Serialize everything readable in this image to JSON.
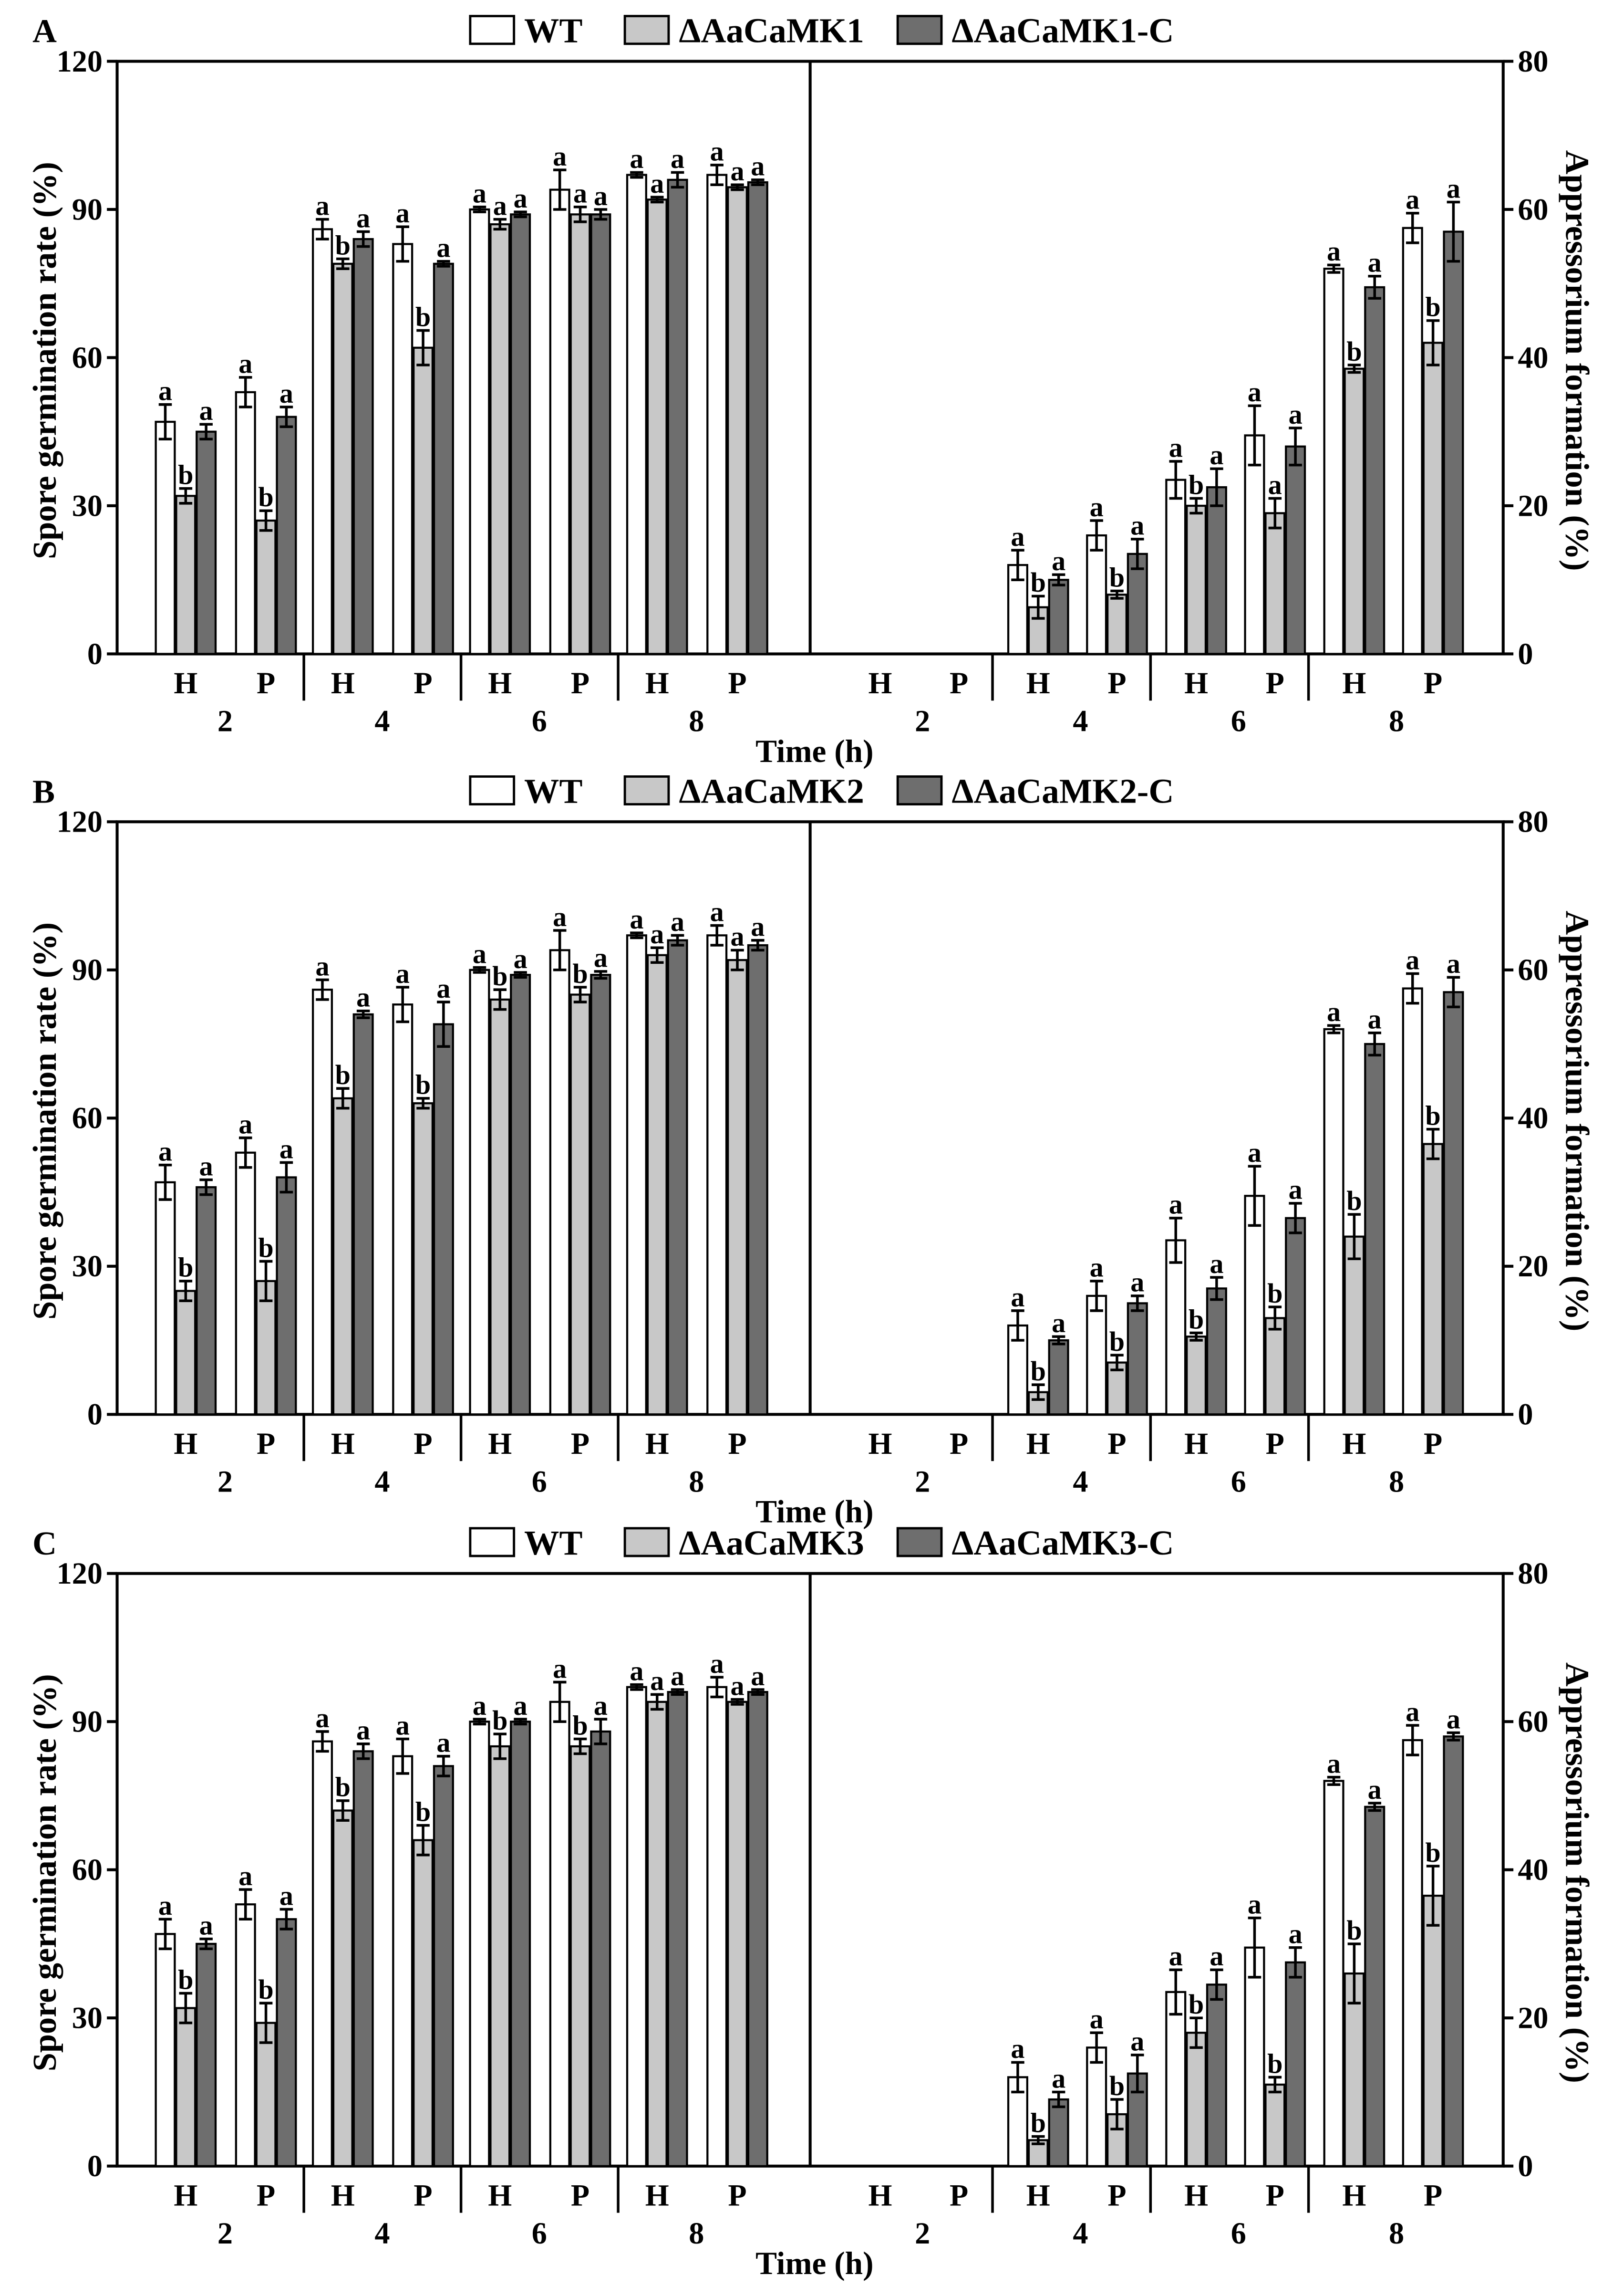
{
  "chart_data": [
    {
      "panel": "A",
      "type": "bar",
      "series": [
        {
          "name": "WT",
          "color": "#ffffff"
        },
        {
          "name": "ΔAaCaMK1",
          "color": "#c8c8c8"
        },
        {
          "name": "ΔAaCaMK1-C",
          "color": "#6e6e6e"
        }
      ],
      "times": [
        "2",
        "4",
        "6",
        "8"
      ],
      "conditions": [
        "H",
        "P"
      ],
      "xlabel": "Time (h)",
      "germination": {
        "ylabel": "Spore germination rate (%)",
        "ylim": [
          0,
          120
        ],
        "yticks": [
          0,
          30,
          60,
          90,
          120
        ],
        "groups": [
          [
            {
              "values": [
                47,
                32,
                45
              ],
              "errors": [
                3.5,
                1.5,
                1.5
              ],
              "letters": [
                "a",
                "b",
                "a"
              ]
            },
            {
              "values": [
                53,
                27,
                48
              ],
              "errors": [
                3,
                2,
                2
              ],
              "letters": [
                "a",
                "b",
                "a"
              ]
            }
          ],
          [
            {
              "values": [
                86,
                79,
                84
              ],
              "errors": [
                2,
                1,
                1.5
              ],
              "letters": [
                "a",
                "b",
                "a"
              ]
            },
            {
              "values": [
                83,
                62,
                79
              ],
              "errors": [
                3.5,
                3.5,
                0.5
              ],
              "letters": [
                "a",
                "b",
                "a"
              ]
            }
          ],
          [
            {
              "values": [
                90,
                87,
                89
              ],
              "errors": [
                0.5,
                1,
                0.5
              ],
              "letters": [
                "a",
                "a",
                "a"
              ]
            },
            {
              "values": [
                94,
                89,
                89
              ],
              "errors": [
                4,
                1.5,
                1
              ],
              "letters": [
                "a",
                "a",
                "a"
              ]
            }
          ],
          [
            {
              "values": [
                97,
                92,
                96
              ],
              "errors": [
                0.5,
                0.5,
                1.5
              ],
              "letters": [
                "a",
                "a",
                "a"
              ]
            },
            {
              "values": [
                97,
                94.5,
                95.5
              ],
              "errors": [
                2,
                0.5,
                0.5
              ],
              "letters": [
                "a",
                "a",
                "a"
              ]
            }
          ]
        ]
      },
      "appressorium": {
        "ylabel": "Appressorium formation (%)",
        "ylim": [
          0,
          80
        ],
        "yticks": [
          0,
          20,
          40,
          60,
          80
        ],
        "groups": [
          [
            {
              "values": [
                0,
                0,
                0
              ],
              "errors": [
                0,
                0,
                0
              ],
              "letters": []
            },
            {
              "values": [
                0,
                0,
                0
              ],
              "errors": [
                0,
                0,
                0
              ],
              "letters": []
            }
          ],
          [
            {
              "values": [
                12,
                6.3,
                10
              ],
              "errors": [
                2,
                1.5,
                0.7
              ],
              "letters": [
                "a",
                "b",
                "a"
              ]
            },
            {
              "values": [
                16,
                8,
                13.5
              ],
              "errors": [
                2,
                0.5,
                2
              ],
              "letters": [
                "a",
                "b",
                "a"
              ]
            }
          ],
          [
            {
              "values": [
                23.5,
                20,
                22.5
              ],
              "errors": [
                2.5,
                1,
                2.5
              ],
              "letters": [
                "a",
                "b",
                "a"
              ]
            },
            {
              "values": [
                29.5,
                19,
                28
              ],
              "errors": [
                4,
                2,
                2.5
              ],
              "letters": [
                "a",
                "a",
                "a"
              ]
            }
          ],
          [
            {
              "values": [
                52,
                38.5,
                49.5
              ],
              "errors": [
                0.5,
                0.5,
                1.5
              ],
              "letters": [
                "a",
                "b",
                "a"
              ]
            },
            {
              "values": [
                57.5,
                42,
                57
              ],
              "errors": [
                2,
                3,
                4
              ],
              "letters": [
                "a",
                "b",
                "a"
              ]
            }
          ]
        ]
      }
    },
    {
      "panel": "B",
      "type": "bar",
      "series": [
        {
          "name": "WT",
          "color": "#ffffff"
        },
        {
          "name": "ΔAaCaMK2",
          "color": "#c8c8c8"
        },
        {
          "name": "ΔAaCaMK2-C",
          "color": "#6e6e6e"
        }
      ],
      "times": [
        "2",
        "4",
        "6",
        "8"
      ],
      "conditions": [
        "H",
        "P"
      ],
      "xlabel": "Time (h)",
      "germination": {
        "ylabel": "Spore germination rate (%)",
        "ylim": [
          0,
          120
        ],
        "yticks": [
          0,
          30,
          60,
          90,
          120
        ],
        "groups": [
          [
            {
              "values": [
                47,
                25,
                46
              ],
              "errors": [
                3.5,
                2,
                1.5
              ],
              "letters": [
                "a",
                "b",
                "a"
              ]
            },
            {
              "values": [
                53,
                27,
                48
              ],
              "errors": [
                3,
                4,
                3
              ],
              "letters": [
                "a",
                "b",
                "a"
              ]
            }
          ],
          [
            {
              "values": [
                86,
                64,
                81
              ],
              "errors": [
                2,
                2,
                0.7
              ],
              "letters": [
                "a",
                "b",
                "a"
              ]
            },
            {
              "values": [
                83,
                63,
                79
              ],
              "errors": [
                3.5,
                1,
                4.5
              ],
              "letters": [
                "a",
                "b",
                "a"
              ]
            }
          ],
          [
            {
              "values": [
                90,
                84,
                89
              ],
              "errors": [
                0.5,
                2,
                0.5
              ],
              "letters": [
                "a",
                "b",
                "a"
              ]
            },
            {
              "values": [
                94,
                85,
                89
              ],
              "errors": [
                4,
                1.5,
                0.7
              ],
              "letters": [
                "a",
                "b",
                "a"
              ]
            }
          ],
          [
            {
              "values": [
                97,
                93,
                96
              ],
              "errors": [
                0.5,
                1.5,
                1
              ],
              "letters": [
                "a",
                "a",
                "a"
              ]
            },
            {
              "values": [
                97,
                92,
                95
              ],
              "errors": [
                2,
                2,
                1
              ],
              "letters": [
                "a",
                "a",
                "a"
              ]
            }
          ]
        ]
      },
      "appressorium": {
        "ylabel": "Appressorium formation (%)",
        "ylim": [
          0,
          80
        ],
        "yticks": [
          0,
          20,
          40,
          60,
          80
        ],
        "groups": [
          [
            {
              "values": [
                0,
                0,
                0
              ],
              "errors": [
                0,
                0,
                0
              ],
              "letters": []
            },
            {
              "values": [
                0,
                0,
                0
              ],
              "errors": [
                0,
                0,
                0
              ],
              "letters": []
            }
          ],
          [
            {
              "values": [
                12,
                3,
                10
              ],
              "errors": [
                2,
                1,
                0.5
              ],
              "letters": [
                "a",
                "b",
                "a"
              ]
            },
            {
              "values": [
                16,
                7,
                15
              ],
              "errors": [
                2,
                1,
                1
              ],
              "letters": [
                "a",
                "b",
                "a"
              ]
            }
          ],
          [
            {
              "values": [
                23.5,
                10.5,
                17
              ],
              "errors": [
                3,
                0.5,
                1.5
              ],
              "letters": [
                "a",
                "b",
                "a"
              ]
            },
            {
              "values": [
                29.5,
                13,
                26.5
              ],
              "errors": [
                4,
                1.5,
                2
              ],
              "letters": [
                "a",
                "b",
                "a"
              ]
            }
          ],
          [
            {
              "values": [
                52,
                24,
                50
              ],
              "errors": [
                0.5,
                3,
                1.5
              ],
              "letters": [
                "a",
                "b",
                "a"
              ]
            },
            {
              "values": [
                57.5,
                36.5,
                57
              ],
              "errors": [
                2,
                2,
                2
              ],
              "letters": [
                "a",
                "b",
                "a"
              ]
            }
          ]
        ]
      }
    },
    {
      "panel": "C",
      "type": "bar",
      "series": [
        {
          "name": "WT",
          "color": "#ffffff"
        },
        {
          "name": "ΔAaCaMK3",
          "color": "#c8c8c8"
        },
        {
          "name": "ΔAaCaMK3-C",
          "color": "#6e6e6e"
        }
      ],
      "times": [
        "2",
        "4",
        "6",
        "8"
      ],
      "conditions": [
        "H",
        "P"
      ],
      "xlabel": "Time (h)",
      "germination": {
        "ylabel": "Spore germination rate (%)",
        "ylim": [
          0,
          120
        ],
        "yticks": [
          0,
          30,
          60,
          90,
          120
        ],
        "groups": [
          [
            {
              "values": [
                47,
                32,
                45
              ],
              "errors": [
                3,
                3,
                1
              ],
              "letters": [
                "a",
                "b",
                "a"
              ]
            },
            {
              "values": [
                53,
                29,
                50
              ],
              "errors": [
                3,
                4,
                2
              ],
              "letters": [
                "a",
                "b",
                "a"
              ]
            }
          ],
          [
            {
              "values": [
                86,
                72,
                84
              ],
              "errors": [
                2,
                2,
                1.5
              ],
              "letters": [
                "a",
                "b",
                "a"
              ]
            },
            {
              "values": [
                83,
                66,
                81
              ],
              "errors": [
                3.5,
                3,
                2
              ],
              "letters": [
                "a",
                "b",
                "a"
              ]
            }
          ],
          [
            {
              "values": [
                90,
                85,
                90
              ],
              "errors": [
                0.5,
                2.5,
                0.5
              ],
              "letters": [
                "a",
                "b",
                "a"
              ]
            },
            {
              "values": [
                94,
                85,
                88
              ],
              "errors": [
                4,
                1.5,
                2.5
              ],
              "letters": [
                "a",
                "b",
                "a"
              ]
            }
          ],
          [
            {
              "values": [
                97,
                94,
                96
              ],
              "errors": [
                0.5,
                1.5,
                0.5
              ],
              "letters": [
                "a",
                "a",
                "a"
              ]
            },
            {
              "values": [
                97,
                94,
                96
              ],
              "errors": [
                2,
                0.5,
                0.5
              ],
              "letters": [
                "a",
                "a",
                "a"
              ]
            }
          ]
        ]
      },
      "appressorium": {
        "ylabel": "Appressorium formation (%)",
        "ylim": [
          0,
          80
        ],
        "yticks": [
          0,
          20,
          40,
          60,
          80
        ],
        "groups": [
          [
            {
              "values": [
                0,
                0,
                0
              ],
              "errors": [
                0,
                0,
                0
              ],
              "letters": []
            },
            {
              "values": [
                0,
                0,
                0
              ],
              "errors": [
                0,
                0,
                0
              ],
              "letters": []
            }
          ],
          [
            {
              "values": [
                12,
                3.5,
                9
              ],
              "errors": [
                2,
                0.5,
                1
              ],
              "letters": [
                "a",
                "b",
                "a"
              ]
            },
            {
              "values": [
                16,
                7,
                12.5
              ],
              "errors": [
                2,
                2,
                2.5
              ],
              "letters": [
                "a",
                "b",
                "a"
              ]
            }
          ],
          [
            {
              "values": [
                23.5,
                18,
                24.5
              ],
              "errors": [
                3,
                2,
                2
              ],
              "letters": [
                "a",
                "b",
                "a"
              ]
            },
            {
              "values": [
                29.5,
                11,
                27.5
              ],
              "errors": [
                4,
                1,
                2
              ],
              "letters": [
                "a",
                "b",
                "a"
              ]
            }
          ],
          [
            {
              "values": [
                52,
                26,
                48.5
              ],
              "errors": [
                0.5,
                4,
                0.5
              ],
              "letters": [
                "a",
                "b",
                "a"
              ]
            },
            {
              "values": [
                57.5,
                36.5,
                58
              ],
              "errors": [
                2,
                4,
                0.5
              ],
              "letters": [
                "a",
                "b",
                "a"
              ]
            }
          ]
        ]
      }
    }
  ]
}
